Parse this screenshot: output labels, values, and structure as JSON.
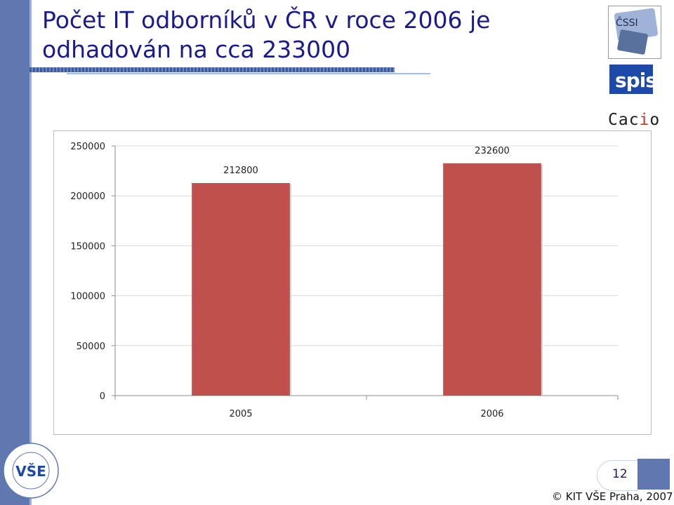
{
  "slide": {
    "title": "Počet IT odborníků v ČR v roce 2006 je odhadován na cca 233000",
    "page_number": "12",
    "footer": "© KIT VŠE Praha, 2007"
  },
  "logos": {
    "cssi": "ČSSI",
    "spis": "spis",
    "cacio_pre": "Cac",
    "cacio_i": "i",
    "cacio_post": "o",
    "seal": "VŠE"
  },
  "colors": {
    "bar": "#c0504d",
    "title": "#1a1a8c",
    "band": "#5f78b0",
    "grid": "#d9d9d9"
  },
  "chart_data": {
    "type": "bar",
    "categories": [
      "2005",
      "2006"
    ],
    "values": [
      212800,
      232600
    ],
    "data_labels": [
      "212800",
      "232600"
    ],
    "ylim": [
      0,
      250000
    ],
    "yticks": [
      0,
      50000,
      100000,
      150000,
      200000,
      250000
    ],
    "ytick_labels": [
      "0",
      "50000",
      "100000",
      "150000",
      "200000",
      "250000"
    ],
    "title": "",
    "xlabel": "",
    "ylabel": "",
    "grid": true,
    "legend": "none"
  }
}
